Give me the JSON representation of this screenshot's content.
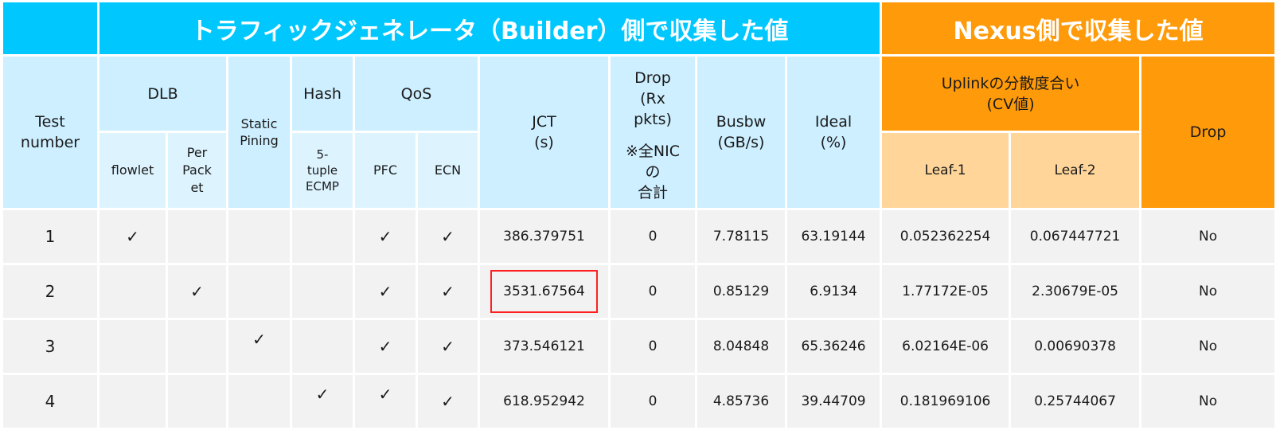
{
  "header": {
    "builder_title": "トラフィックジェネレータ（Builder）側で収集した値",
    "nexus_title": "Nexus側で収集した値"
  },
  "columns": {
    "test_number": "Test\nnumber",
    "dlb": "DLB",
    "flowlet": "flowlet",
    "per_packet": "Per\nPack\net",
    "static_pining": "Static\nPining",
    "hash": "Hash",
    "five_tuple": "5-\ntuple\nECMP",
    "qos": "QoS",
    "pfc": "PFC",
    "ecn": "ECN",
    "jct": "JCT\n(s)",
    "drop_rx": "Drop\n(Rx\npkts)",
    "drop_note": "※全NIC\nの\n合計",
    "busbw": "Busbw\n(GB/s)",
    "ideal": "Ideal\n(%)",
    "uplink": "Uplinkの分散度合い\n(CV値)",
    "leaf1": "Leaf-1",
    "leaf2": "Leaf-2",
    "drop": "Drop"
  },
  "check_mark": "✓",
  "rows": [
    {
      "test": "1",
      "flowlet": "✓",
      "per_packet": "",
      "static": "",
      "five_tuple": "",
      "pfc": "✓",
      "ecn": "✓",
      "jct": "386.379751",
      "drop_rx": "0",
      "busbw": "7.78115",
      "ideal": "63.19144",
      "leaf1": "0.052362254",
      "leaf2": "0.067447721",
      "drop": "No"
    },
    {
      "test": "2",
      "flowlet": "",
      "per_packet": "✓",
      "static": "",
      "five_tuple": "",
      "pfc": "✓",
      "ecn": "✓",
      "jct": "3531.67564",
      "drop_rx": "0",
      "busbw": "0.85129",
      "ideal": "6.9134",
      "leaf1": "1.77172E-05",
      "leaf2": "2.30679E-05",
      "drop": "No"
    },
    {
      "test": "3",
      "flowlet": "",
      "per_packet": "",
      "static": "✓",
      "five_tuple": "",
      "pfc": "✓",
      "ecn": "✓",
      "jct": "373.546121",
      "drop_rx": "0",
      "busbw": "8.04848",
      "ideal": "65.36246",
      "leaf1": "6.02164E-06",
      "leaf2": "0.00690378",
      "drop": "No"
    },
    {
      "test": "4",
      "flowlet": "",
      "per_packet": "",
      "static": "",
      "five_tuple": "✓",
      "pfc": "✓",
      "ecn": "✓",
      "jct": "618.952942",
      "drop_rx": "0",
      "busbw": "4.85736",
      "ideal": "39.44709",
      "leaf1": "0.181969106",
      "leaf2": "0.25744067",
      "drop": "No"
    }
  ],
  "colors": {
    "builder_banner": "#00c8ff",
    "nexus_banner": "#ff9a0a",
    "builder_header": "#cdefff",
    "nexus_subheader": "#ffd59a",
    "row_bg": "#f2f2f2",
    "highlight_border": "#ff1f1f"
  }
}
